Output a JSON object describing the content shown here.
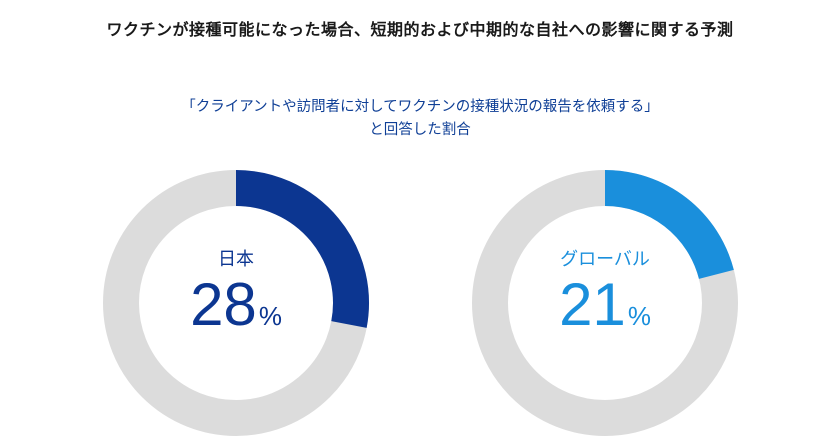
{
  "title": "ワクチンが接種可能になった場合、短期的および中期的な自社への影響に関する予測",
  "subtitle_lines": [
    "「クライアントや訪問者に対してワクチンの接種状況の報告を依頼する」",
    "と回答した割合"
  ],
  "colors": {
    "japan": "#0c3691",
    "global": "#1a8fdc",
    "remainder": "#dcdcdc",
    "subtitle": "#0f3f96"
  },
  "chart_data": {
    "type": "pie",
    "style": "donut",
    "unit": "%",
    "charts": [
      {
        "label": "日本",
        "value": 28,
        "value_text": "28",
        "color_key": "japan"
      },
      {
        "label": "グローバル",
        "value": 21,
        "value_text": "21",
        "color_key": "global"
      }
    ]
  }
}
